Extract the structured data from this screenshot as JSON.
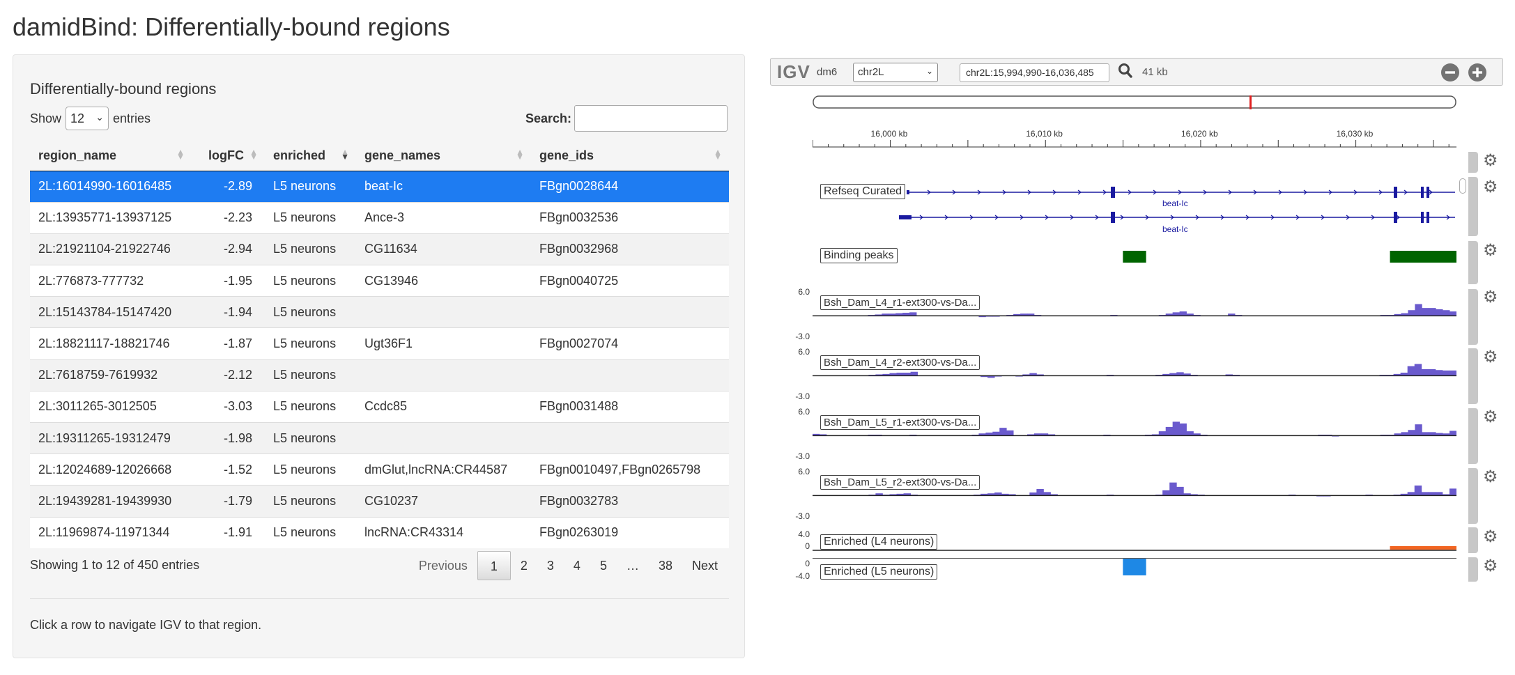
{
  "page": {
    "title": "damidBind: Differentially-bound regions"
  },
  "table": {
    "title": "Differentially-bound regions",
    "show_label": "Show",
    "entries_label": "entries",
    "length_value": "12",
    "search_label": "Search:",
    "search_value": "",
    "columns": [
      "region_name",
      "logFC",
      "enriched",
      "gene_names",
      "gene_ids"
    ],
    "sorted_column": "enriched",
    "sort_direction": "desc",
    "rows": [
      {
        "region_name": "2L:16014990-16016485",
        "logFC": "-2.89",
        "enriched": "L5 neurons",
        "gene_names": "beat-Ic",
        "gene_ids": "FBgn0028644",
        "selected": true
      },
      {
        "region_name": "2L:13935771-13937125",
        "logFC": "-2.23",
        "enriched": "L5 neurons",
        "gene_names": "Ance-3",
        "gene_ids": "FBgn0032536"
      },
      {
        "region_name": "2L:21921104-21922746",
        "logFC": "-2.94",
        "enriched": "L5 neurons",
        "gene_names": "CG11634",
        "gene_ids": "FBgn0032968"
      },
      {
        "region_name": "2L:776873-777732",
        "logFC": "-1.95",
        "enriched": "L5 neurons",
        "gene_names": "CG13946",
        "gene_ids": "FBgn0040725"
      },
      {
        "region_name": "2L:15143784-15147420",
        "logFC": "-1.94",
        "enriched": "L5 neurons",
        "gene_names": "",
        "gene_ids": ""
      },
      {
        "region_name": "2L:18821117-18821746",
        "logFC": "-1.87",
        "enriched": "L5 neurons",
        "gene_names": "Ugt36F1",
        "gene_ids": "FBgn0027074"
      },
      {
        "region_name": "2L:7618759-7619932",
        "logFC": "-2.12",
        "enriched": "L5 neurons",
        "gene_names": "",
        "gene_ids": ""
      },
      {
        "region_name": "2L:3011265-3012505",
        "logFC": "-3.03",
        "enriched": "L5 neurons",
        "gene_names": "Ccdc85",
        "gene_ids": "FBgn0031488"
      },
      {
        "region_name": "2L:19311265-19312479",
        "logFC": "-1.98",
        "enriched": "L5 neurons",
        "gene_names": "",
        "gene_ids": ""
      },
      {
        "region_name": "2L:12024689-12026668",
        "logFC": "-1.52",
        "enriched": "L5 neurons",
        "gene_names": "dmGlut,lncRNA:CR44587",
        "gene_ids": "FBgn0010497,FBgn0265798"
      },
      {
        "region_name": "2L:19439281-19439930",
        "logFC": "-1.79",
        "enriched": "L5 neurons",
        "gene_names": "CG10237",
        "gene_ids": "FBgn0032783"
      },
      {
        "region_name": "2L:11969874-11971344",
        "logFC": "-1.91",
        "enriched": "L5 neurons",
        "gene_names": "lncRNA:CR43314",
        "gene_ids": "FBgn0263019"
      }
    ],
    "info": "Showing 1 to 12 of 450 entries",
    "pagination": {
      "previous": "Previous",
      "pages": [
        "1",
        "2",
        "3",
        "4",
        "5",
        "…",
        "38"
      ],
      "current": "1",
      "next": "Next"
    },
    "help": "Click a row to navigate IGV to that region."
  },
  "igv": {
    "logo": "IGV",
    "genome": "dm6",
    "chromosome": "chr2L",
    "locus": "chr2L:15,994,990-16,036,485",
    "width_label": "41 kb",
    "view_start": 15994990,
    "view_end": 16036485,
    "ideogram_marker_fraction": 0.68,
    "ruler_ticks": [
      "16,000 kb",
      "16,010 kb",
      "16,020 kb",
      "16,030 kb"
    ],
    "ruler_tick_values": [
      16000000,
      16010000,
      16020000,
      16030000
    ],
    "tracks": {
      "refseq": {
        "name": "Refseq Curated",
        "gene_label_1": "beat-Ic",
        "gene_label_2": "beat-Ic"
      },
      "peaks": {
        "name": "Binding peaks",
        "regions": [
          [
            16014990,
            16016485
          ],
          [
            16032200,
            16036485
          ]
        ],
        "color": "#006400"
      },
      "signal": [
        {
          "name": "Bsh_Dam_L4_r1-ext300-vs-Da...",
          "max": "6.0",
          "min": "-3.0",
          "values": [
            0,
            0,
            0,
            0,
            0,
            0,
            0,
            0,
            0.2,
            0.3,
            0.5,
            0.5,
            0.6,
            0.7,
            0.8,
            0,
            0,
            0,
            0,
            0,
            0,
            0,
            0,
            0,
            -0.3,
            -0.2,
            -0.2,
            0,
            0.2,
            0.4,
            0.5,
            0.5,
            0.2,
            0,
            0,
            0,
            0,
            0,
            0,
            0,
            0,
            0,
            0,
            0.2,
            0,
            0,
            0,
            0,
            0,
            0,
            0.2,
            0.5,
            0.8,
            1.0,
            0.5,
            0.2,
            0,
            0,
            0,
            0,
            0.5,
            0.2,
            0,
            0,
            0,
            0,
            0,
            0,
            0,
            0,
            0,
            0,
            0,
            0,
            0,
            0,
            0,
            0,
            0,
            0,
            0,
            0,
            0.2,
            0.2,
            0.4,
            0.6,
            1.3,
            2.7,
            1.8,
            1.8,
            1.5,
            1.3,
            1.0
          ]
        },
        {
          "name": "Bsh_Dam_L4_r2-ext300-vs-Da...",
          "max": "6.0",
          "min": "-3.0",
          "values": [
            0,
            0,
            0,
            0,
            0,
            0,
            0,
            0,
            0.2,
            0.3,
            0.4,
            0.6,
            0.7,
            0.7,
            0.9,
            0,
            0,
            0,
            0,
            0,
            0,
            0,
            0,
            0,
            -0.3,
            -0.5,
            -0.2,
            0,
            0,
            -0.2,
            0.3,
            0.6,
            0.3,
            0,
            0,
            0,
            0,
            0,
            0,
            0,
            0,
            0,
            0.2,
            0,
            0,
            0,
            0,
            0,
            0,
            0.2,
            0.4,
            0.6,
            0.8,
            0.5,
            0.2,
            0,
            0,
            0,
            0,
            0.3,
            0.2,
            0,
            0,
            0,
            0,
            0,
            0,
            0,
            0,
            0,
            0,
            0,
            0,
            0,
            0,
            0,
            0,
            0,
            0,
            0,
            0,
            0.2,
            0.2,
            0.4,
            0.7,
            2.2,
            2.7,
            1.5,
            1.5,
            1.3,
            1.2,
            1.2
          ]
        },
        {
          "name": "Bsh_Dam_L5_r1-ext300-vs-Da...",
          "max": "6.0",
          "min": "-3.0",
          "values": [
            0.4,
            0.3,
            0,
            0,
            0,
            0,
            0,
            0,
            0.2,
            0.2,
            0,
            0,
            0,
            0,
            0.2,
            0,
            0,
            0,
            0,
            0,
            0,
            0,
            0,
            0.2,
            0.5,
            0.7,
            0.9,
            1.8,
            1.2,
            0,
            0,
            0.3,
            0.5,
            0.5,
            0.3,
            0,
            0,
            0,
            0,
            0,
            0,
            0,
            0.2,
            0,
            0,
            0,
            0,
            0,
            0.2,
            0.3,
            1.0,
            2.0,
            3.2,
            2.8,
            1.0,
            0.5,
            0.2,
            0,
            0,
            0,
            0,
            0,
            0,
            0,
            0,
            0,
            0,
            0,
            0,
            0,
            0,
            0,
            0,
            0.2,
            0.2,
            -0.2,
            0,
            0,
            0,
            0,
            0,
            0,
            0.2,
            0.2,
            0.5,
            0.8,
            1.3,
            2.6,
            0.8,
            0.8,
            0.6,
            0.5,
            1.1
          ]
        },
        {
          "name": "Bsh_Dam_L5_r2-ext300-vs-Da...",
          "max": "6.0",
          "min": "-3.0",
          "values": [
            0,
            0,
            0,
            0,
            0,
            0,
            0,
            0,
            0.2,
            0.5,
            0.2,
            0.3,
            0.4,
            0.5,
            0.2,
            0,
            0,
            0,
            0,
            0,
            0,
            0,
            0,
            0.2,
            0.4,
            0.5,
            0.7,
            0.4,
            0.3,
            0,
            0,
            0.7,
            1.5,
            0.8,
            0.3,
            0,
            0,
            0,
            0,
            0,
            0,
            0,
            0.2,
            0,
            0,
            0,
            0,
            0,
            0,
            0.2,
            1.2,
            3.0,
            2.0,
            0.5,
            0.3,
            0.2,
            0,
            0,
            0,
            0,
            0,
            0,
            0,
            0,
            0,
            0,
            0,
            0,
            0.2,
            0,
            0,
            0,
            -0.2,
            -0.2,
            0,
            0,
            0,
            0,
            0,
            0.2,
            0,
            0,
            0,
            0.2,
            0.4,
            0.8,
            2.3,
            0.8,
            0.8,
            0.8,
            0.3,
            1.6
          ]
        }
      ],
      "enriched_l4": {
        "name": "Enriched (L4 neurons)",
        "max": "4.0",
        "min": "0",
        "region": [
          16032200,
          16036485
        ],
        "color": "#f26522"
      },
      "enriched_l5": {
        "name": "Enriched (L5 neurons)",
        "max": "0",
        "min": "-4.0",
        "region": [
          16014990,
          16016485
        ],
        "color": "#1e88e5"
      }
    }
  }
}
